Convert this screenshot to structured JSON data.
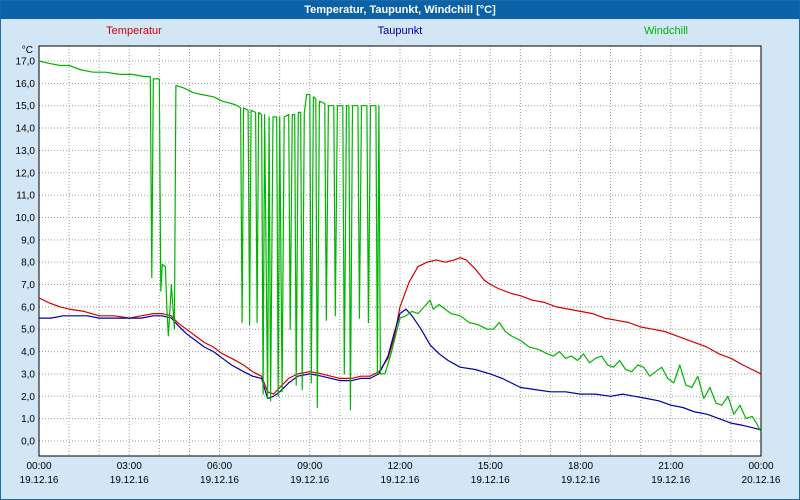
{
  "colors": {
    "page_bg": "#d2e6f6",
    "frame": "#1a6aa8",
    "titlebar_bg": "#0b62a8",
    "titlebar_text": "#ffffff",
    "plot_bg": "#ffffff",
    "grid": "#9c9c9c",
    "axis": "#000000"
  },
  "chart_data": {
    "type": "line",
    "title": "Temperatur, Taupunkt, Windchill [°C]",
    "ylabel": "°C",
    "ylim": [
      0,
      17
    ],
    "y_step": 1,
    "grid": {
      "style": "dotted",
      "vertical_every_hours": 1,
      "horizontal_every": 1
    },
    "legend_position": "top",
    "y_tick_labels": [
      "0,0",
      "1,0",
      "2,0",
      "3,0",
      "4,0",
      "5,0",
      "6,0",
      "7,0",
      "8,0",
      "9,0",
      "10,0",
      "11,0",
      "12,0",
      "13,0",
      "14,0",
      "15,0",
      "16,0",
      "17,0"
    ],
    "xlim": [
      0,
      24
    ],
    "x_ticks": [
      {
        "hour": 0,
        "time": "00:00",
        "date": "19.12.16"
      },
      {
        "hour": 3,
        "time": "03:00",
        "date": "19.12.16"
      },
      {
        "hour": 6,
        "time": "06:00",
        "date": "19.12.16"
      },
      {
        "hour": 9,
        "time": "09:00",
        "date": "19.12.16"
      },
      {
        "hour": 12,
        "time": "12:00",
        "date": "19.12.16"
      },
      {
        "hour": 15,
        "time": "15:00",
        "date": "19.12.16"
      },
      {
        "hour": 18,
        "time": "18:00",
        "date": "19.12.16"
      },
      {
        "hour": 21,
        "time": "21:00",
        "date": "19.12.16"
      },
      {
        "hour": 24,
        "time": "00:00",
        "date": "20.12.16"
      }
    ],
    "series": [
      {
        "name": "Temperatur",
        "color": "#d40000",
        "points": [
          [
            0,
            6.4
          ],
          [
            0.3,
            6.2
          ],
          [
            0.7,
            6.0
          ],
          [
            1,
            5.9
          ],
          [
            1.5,
            5.8
          ],
          [
            2,
            5.6
          ],
          [
            2.5,
            5.6
          ],
          [
            3,
            5.5
          ],
          [
            3.4,
            5.6
          ],
          [
            3.8,
            5.7
          ],
          [
            4.1,
            5.7
          ],
          [
            4.4,
            5.6
          ],
          [
            4.6,
            5.3
          ],
          [
            4.9,
            5.0
          ],
          [
            5.2,
            4.7
          ],
          [
            5.5,
            4.4
          ],
          [
            5.8,
            4.2
          ],
          [
            6.1,
            3.9
          ],
          [
            6.4,
            3.7
          ],
          [
            6.8,
            3.4
          ],
          [
            7.1,
            3.1
          ],
          [
            7.4,
            2.9
          ],
          [
            7.6,
            2.2
          ],
          [
            7.8,
            2.1
          ],
          [
            8.0,
            2.4
          ],
          [
            8.3,
            2.8
          ],
          [
            8.6,
            3.0
          ],
          [
            9.0,
            3.1
          ],
          [
            9.4,
            3.0
          ],
          [
            9.7,
            2.9
          ],
          [
            10.0,
            2.8
          ],
          [
            10.4,
            2.8
          ],
          [
            10.7,
            2.9
          ],
          [
            11.0,
            2.9
          ],
          [
            11.3,
            3.1
          ],
          [
            11.6,
            3.7
          ],
          [
            11.8,
            4.6
          ],
          [
            12.0,
            6.0
          ],
          [
            12.3,
            7.1
          ],
          [
            12.6,
            7.8
          ],
          [
            12.9,
            8.0
          ],
          [
            13.2,
            8.1
          ],
          [
            13.5,
            8.0
          ],
          [
            13.8,
            8.1
          ],
          [
            14.0,
            8.2
          ],
          [
            14.2,
            8.1
          ],
          [
            14.5,
            7.7
          ],
          [
            14.8,
            7.2
          ],
          [
            15.0,
            7.0
          ],
          [
            15.3,
            6.8
          ],
          [
            15.7,
            6.6
          ],
          [
            16.0,
            6.5
          ],
          [
            16.4,
            6.3
          ],
          [
            16.8,
            6.2
          ],
          [
            17.2,
            6.0
          ],
          [
            17.6,
            5.9
          ],
          [
            18.0,
            5.8
          ],
          [
            18.4,
            5.7
          ],
          [
            18.8,
            5.5
          ],
          [
            19.2,
            5.4
          ],
          [
            19.6,
            5.3
          ],
          [
            20.0,
            5.1
          ],
          [
            20.4,
            5.0
          ],
          [
            20.8,
            4.9
          ],
          [
            21.0,
            4.8
          ],
          [
            21.4,
            4.6
          ],
          [
            21.8,
            4.4
          ],
          [
            22.2,
            4.2
          ],
          [
            22.6,
            3.9
          ],
          [
            23.0,
            3.7
          ],
          [
            23.4,
            3.4
          ],
          [
            23.7,
            3.2
          ],
          [
            24,
            3.0
          ]
        ]
      },
      {
        "name": "Taupunkt",
        "color": "#0000a0",
        "points": [
          [
            0,
            5.5
          ],
          [
            0.4,
            5.5
          ],
          [
            0.8,
            5.6
          ],
          [
            1.2,
            5.6
          ],
          [
            1.6,
            5.6
          ],
          [
            2,
            5.5
          ],
          [
            2.5,
            5.5
          ],
          [
            3,
            5.5
          ],
          [
            3.4,
            5.5
          ],
          [
            3.8,
            5.6
          ],
          [
            4.1,
            5.6
          ],
          [
            4.4,
            5.5
          ],
          [
            4.6,
            5.2
          ],
          [
            4.9,
            4.8
          ],
          [
            5.2,
            4.5
          ],
          [
            5.5,
            4.2
          ],
          [
            5.8,
            4.0
          ],
          [
            6.1,
            3.7
          ],
          [
            6.4,
            3.4
          ],
          [
            6.8,
            3.1
          ],
          [
            7.1,
            2.9
          ],
          [
            7.4,
            2.8
          ],
          [
            7.6,
            1.9
          ],
          [
            7.8,
            2.0
          ],
          [
            8.0,
            2.2
          ],
          [
            8.3,
            2.6
          ],
          [
            8.6,
            2.9
          ],
          [
            9.0,
            3.0
          ],
          [
            9.4,
            2.9
          ],
          [
            9.7,
            2.8
          ],
          [
            10.0,
            2.7
          ],
          [
            10.4,
            2.7
          ],
          [
            10.7,
            2.8
          ],
          [
            11.0,
            2.8
          ],
          [
            11.3,
            3.0
          ],
          [
            11.6,
            3.8
          ],
          [
            11.8,
            4.8
          ],
          [
            12.0,
            5.7
          ],
          [
            12.2,
            5.9
          ],
          [
            12.4,
            5.6
          ],
          [
            12.7,
            5.0
          ],
          [
            13.0,
            4.3
          ],
          [
            13.3,
            3.9
          ],
          [
            13.6,
            3.6
          ],
          [
            14.0,
            3.3
          ],
          [
            14.5,
            3.2
          ],
          [
            15.0,
            3.0
          ],
          [
            15.4,
            2.8
          ],
          [
            15.7,
            2.6
          ],
          [
            16.0,
            2.4
          ],
          [
            16.5,
            2.3
          ],
          [
            17.0,
            2.2
          ],
          [
            17.5,
            2.2
          ],
          [
            18.0,
            2.1
          ],
          [
            18.5,
            2.1
          ],
          [
            19.0,
            2.0
          ],
          [
            19.4,
            2.1
          ],
          [
            19.8,
            2.0
          ],
          [
            20.2,
            1.9
          ],
          [
            20.6,
            1.8
          ],
          [
            21.0,
            1.6
          ],
          [
            21.4,
            1.5
          ],
          [
            21.8,
            1.3
          ],
          [
            22.2,
            1.2
          ],
          [
            22.6,
            1.0
          ],
          [
            23.0,
            0.8
          ],
          [
            23.4,
            0.7
          ],
          [
            23.7,
            0.6
          ],
          [
            24,
            0.5
          ]
        ]
      },
      {
        "name": "Windchill",
        "color": "#00b400",
        "points": [
          [
            0,
            17.0
          ],
          [
            0.3,
            16.9
          ],
          [
            0.7,
            16.8
          ],
          [
            1.0,
            16.8
          ],
          [
            1.4,
            16.6
          ],
          [
            1.8,
            16.5
          ],
          [
            2.2,
            16.5
          ],
          [
            2.7,
            16.4
          ],
          [
            3.1,
            16.4
          ],
          [
            3.5,
            16.3
          ],
          [
            3.7,
            16.3
          ],
          [
            3.75,
            7.3
          ],
          [
            3.8,
            16.2
          ],
          [
            4.0,
            16.2
          ],
          [
            4.05,
            6.7
          ],
          [
            4.1,
            7.9
          ],
          [
            4.2,
            7.8
          ],
          [
            4.25,
            5.9
          ],
          [
            4.3,
            4.7
          ],
          [
            4.4,
            7.0
          ],
          [
            4.5,
            5.0
          ],
          [
            4.55,
            15.9
          ],
          [
            4.8,
            15.8
          ],
          [
            5.1,
            15.6
          ],
          [
            5.4,
            15.5
          ],
          [
            5.8,
            15.4
          ],
          [
            6.1,
            15.2
          ],
          [
            6.4,
            15.1
          ],
          [
            6.6,
            15.0
          ],
          [
            6.7,
            14.9
          ],
          [
            6.75,
            5.3
          ],
          [
            6.8,
            14.9
          ],
          [
            6.95,
            14.8
          ],
          [
            7.0,
            5.2
          ],
          [
            7.05,
            14.8
          ],
          [
            7.2,
            14.7
          ],
          [
            7.25,
            5.3
          ],
          [
            7.3,
            14.7
          ],
          [
            7.4,
            14.6
          ],
          [
            7.45,
            2.1
          ],
          [
            7.5,
            14.6
          ],
          [
            7.6,
            1.9
          ],
          [
            7.65,
            14.5
          ],
          [
            7.7,
            1.8
          ],
          [
            7.78,
            14.5
          ],
          [
            7.9,
            14.5
          ],
          [
            7.95,
            2.0
          ],
          [
            8.0,
            14.5
          ],
          [
            8.08,
            2.2
          ],
          [
            8.15,
            14.5
          ],
          [
            8.3,
            14.6
          ],
          [
            8.35,
            5.0
          ],
          [
            8.42,
            14.6
          ],
          [
            8.5,
            14.6
          ],
          [
            8.55,
            2.5
          ],
          [
            8.62,
            14.7
          ],
          [
            8.7,
            14.7
          ],
          [
            8.75,
            2.3
          ],
          [
            8.82,
            14.7
          ],
          [
            8.9,
            15.5
          ],
          [
            9.0,
            15.5
          ],
          [
            9.05,
            2.6
          ],
          [
            9.12,
            15.4
          ],
          [
            9.2,
            15.3
          ],
          [
            9.25,
            1.5
          ],
          [
            9.32,
            15.2
          ],
          [
            9.5,
            15.1
          ],
          [
            9.55,
            5.4
          ],
          [
            9.62,
            15.0
          ],
          [
            9.8,
            15.0
          ],
          [
            9.85,
            5.6
          ],
          [
            9.92,
            15.0
          ],
          [
            10.1,
            15.0
          ],
          [
            10.15,
            3.0
          ],
          [
            10.22,
            15.0
          ],
          [
            10.3,
            15.0
          ],
          [
            10.35,
            1.4
          ],
          [
            10.42,
            15.0
          ],
          [
            10.6,
            15.0
          ],
          [
            10.65,
            5.5
          ],
          [
            10.72,
            15.0
          ],
          [
            10.9,
            15.0
          ],
          [
            10.95,
            5.3
          ],
          [
            11.02,
            15.0
          ],
          [
            11.2,
            15.0
          ],
          [
            11.25,
            3.0
          ],
          [
            11.3,
            15.0
          ],
          [
            11.35,
            3.0
          ],
          [
            11.5,
            3.0
          ],
          [
            11.7,
            3.9
          ],
          [
            12.0,
            5.5
          ],
          [
            12.2,
            5.6
          ],
          [
            12.4,
            5.8
          ],
          [
            12.6,
            5.7
          ],
          [
            12.8,
            6.0
          ],
          [
            13.0,
            6.3
          ],
          [
            13.1,
            5.9
          ],
          [
            13.3,
            6.1
          ],
          [
            13.5,
            5.9
          ],
          [
            13.7,
            5.7
          ],
          [
            14.0,
            5.6
          ],
          [
            14.3,
            5.3
          ],
          [
            14.6,
            5.2
          ],
          [
            14.9,
            5.0
          ],
          [
            15.1,
            5.0
          ],
          [
            15.3,
            5.3
          ],
          [
            15.5,
            4.9
          ],
          [
            15.7,
            4.7
          ],
          [
            16.0,
            4.5
          ],
          [
            16.3,
            4.2
          ],
          [
            16.6,
            4.1
          ],
          [
            16.9,
            3.9
          ],
          [
            17.1,
            3.8
          ],
          [
            17.3,
            4.0
          ],
          [
            17.5,
            3.7
          ],
          [
            17.7,
            3.8
          ],
          [
            17.9,
            3.6
          ],
          [
            18.1,
            3.9
          ],
          [
            18.3,
            3.5
          ],
          [
            18.5,
            3.7
          ],
          [
            18.7,
            3.8
          ],
          [
            18.9,
            3.4
          ],
          [
            19.1,
            3.3
          ],
          [
            19.3,
            3.6
          ],
          [
            19.5,
            3.2
          ],
          [
            19.7,
            3.1
          ],
          [
            19.9,
            3.4
          ],
          [
            20.1,
            3.3
          ],
          [
            20.3,
            2.9
          ],
          [
            20.5,
            3.1
          ],
          [
            20.7,
            3.3
          ],
          [
            20.9,
            2.8
          ],
          [
            21.1,
            2.6
          ],
          [
            21.3,
            3.4
          ],
          [
            21.5,
            2.5
          ],
          [
            21.7,
            2.4
          ],
          [
            21.9,
            2.9
          ],
          [
            22.1,
            1.9
          ],
          [
            22.3,
            2.4
          ],
          [
            22.5,
            1.7
          ],
          [
            22.7,
            1.6
          ],
          [
            22.9,
            2.0
          ],
          [
            23.1,
            1.2
          ],
          [
            23.3,
            1.6
          ],
          [
            23.5,
            1.0
          ],
          [
            23.7,
            1.1
          ],
          [
            23.85,
            0.8
          ],
          [
            24,
            0.4
          ]
        ]
      }
    ]
  }
}
